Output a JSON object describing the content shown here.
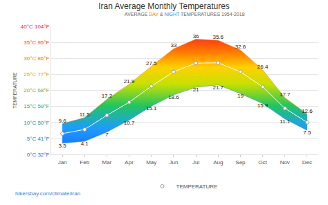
{
  "chart_data": {
    "type": "line",
    "title": "Iran Average Monthly Temperatures",
    "subtitle": "AVERAGE DAY & NIGHT TEMPERATURES 1954-2018",
    "y_label": "TEMPERATURE",
    "source": "hikersbay.com/climate/iran",
    "categories": [
      "Jan",
      "Feb",
      "Mar",
      "Apr",
      "May",
      "Jun",
      "Jul",
      "Aug",
      "Sep",
      "Oct",
      "Nov",
      "Dec"
    ],
    "series": [
      {
        "name": "NIGHT",
        "color": "#1e88e5",
        "values": [
          3.5,
          4.1,
          7,
          10.7,
          15.1,
          18.6,
          21,
          21.7,
          19,
          15.9,
          11.1,
          7.5
        ]
      },
      {
        "name": "DAY",
        "color": "#ff7a00",
        "values": [
          9.6,
          11.5,
          17.2,
          21.9,
          27.5,
          33,
          36,
          35.6,
          32.6,
          26.4,
          17.7,
          12.6
        ]
      },
      {
        "name": "TEMPERATURE",
        "color": "#ffffff",
        "marker": "circle",
        "values": [
          6.5,
          7.8,
          12.2,
          16.3,
          21.3,
          25.8,
          28.5,
          28.6,
          25.8,
          21.1,
          14.4,
          10.0
        ]
      }
    ],
    "ylim": [
      0,
      40
    ],
    "yticks": [
      {
        "value": 0,
        "label": "0°C 32°F"
      },
      {
        "value": 5,
        "label": "5°C 41°F"
      },
      {
        "value": 10,
        "label": "10°C 50°F"
      },
      {
        "value": 15,
        "label": "15°C 59°F"
      },
      {
        "value": 20,
        "label": "20°C 68°F"
      },
      {
        "value": 25,
        "label": "25°C 77°F"
      },
      {
        "value": 30,
        "label": "30°C 86°F"
      },
      {
        "value": 35,
        "label": "35°C 95°F"
      },
      {
        "value": 40,
        "label": "40°C 104°F"
      }
    ],
    "grid": true,
    "legend": "bottom",
    "data_labels": true
  }
}
